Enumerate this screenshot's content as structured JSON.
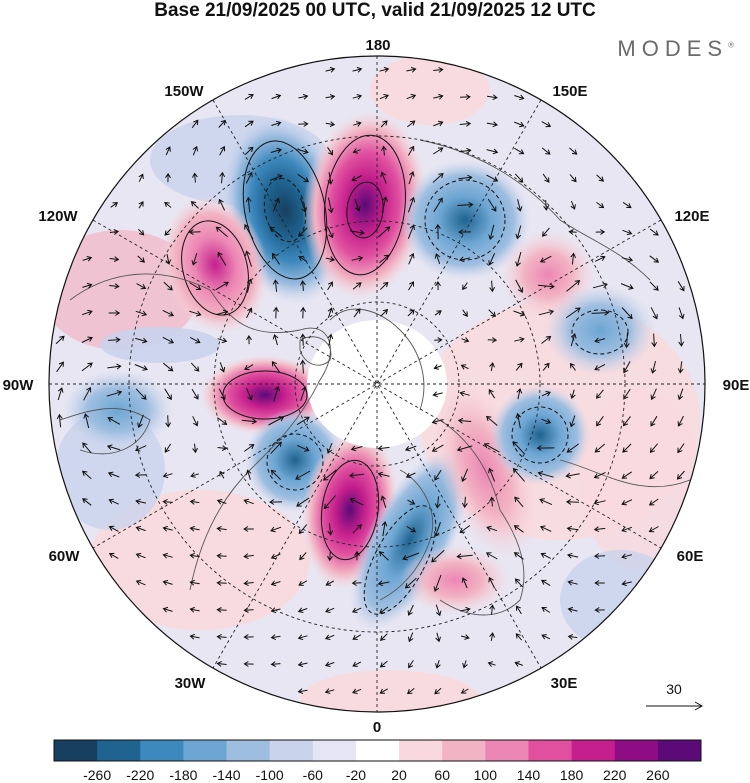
{
  "title": "Base 21/09/2025 00 UTC, valid 21/09/2025 12 UTC",
  "brand": "MODES",
  "brand_mark": "®",
  "map": {
    "projection": "north-polar-stereographic",
    "longitude_labels": [
      "180",
      "150E",
      "120E",
      "90E",
      "60E",
      "30E",
      "0",
      "30W",
      "60W",
      "90W",
      "120W",
      "150W"
    ]
  },
  "legend": {
    "vector_reference": "30",
    "colorbar_ticks": [
      "-260",
      "-220",
      "-180",
      "-140",
      "-100",
      "-60",
      "-20",
      "20",
      "60",
      "100",
      "140",
      "180",
      "220",
      "260"
    ],
    "colors": [
      "#173f5f",
      "#1f6390",
      "#3d88bd",
      "#6da6d3",
      "#9ebee0",
      "#c9d3ec",
      "#e6e5f3",
      "#ffffff",
      "#f9d9dd",
      "#f2b4c4",
      "#ec86b4",
      "#e0509f",
      "#c41f8c",
      "#8f0d84",
      "#5b0a78"
    ]
  },
  "chart_data": {
    "type": "heatmap",
    "title": "Base 21/09/2025 00 UTC, valid 21/09/2025 12 UTC",
    "field": "anomaly",
    "levels": [
      -260,
      -220,
      -180,
      -140,
      -100,
      -60,
      -20,
      20,
      60,
      100,
      140,
      180,
      220,
      260
    ],
    "vector_reference_magnitude": 30
  }
}
